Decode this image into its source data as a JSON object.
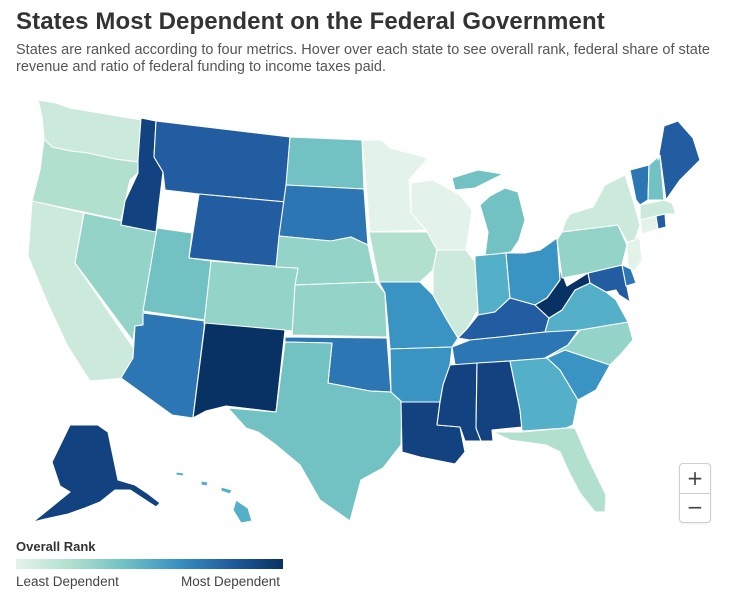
{
  "header": {
    "title": "States Most Dependent on the Federal Government",
    "subtitle": "States are ranked according to four metrics. Hover over each state to see overall rank, federal share of state revenue and ratio of federal funding to income taxes paid."
  },
  "legend": {
    "title": "Overall Rank",
    "low_label": "Least Dependent",
    "high_label": "Most Dependent"
  },
  "zoom": {
    "in_label": "+",
    "out_label": "−"
  },
  "colors": {
    "c1": "#e3f3ea",
    "c2": "#cceadb",
    "c3": "#b1e0cf",
    "c4": "#94d3c7",
    "c5": "#72c2c4",
    "c6": "#54b0c9",
    "c7": "#3993c3",
    "c8": "#2c76b3",
    "c9": "#215da0",
    "c10": "#12427f",
    "c11": "#083263"
  },
  "states": [
    {
      "name": "WA",
      "tier": 2
    },
    {
      "name": "OR",
      "tier": 3
    },
    {
      "name": "CA",
      "tier": 2
    },
    {
      "name": "NV",
      "tier": 4
    },
    {
      "name": "ID",
      "tier": 10
    },
    {
      "name": "MT",
      "tier": 9
    },
    {
      "name": "WY",
      "tier": 9
    },
    {
      "name": "UT",
      "tier": 5
    },
    {
      "name": "AZ",
      "tier": 8
    },
    {
      "name": "CO",
      "tier": 4
    },
    {
      "name": "NM",
      "tier": 11
    },
    {
      "name": "ND",
      "tier": 5
    },
    {
      "name": "SD",
      "tier": 8
    },
    {
      "name": "NE",
      "tier": 4
    },
    {
      "name": "KS",
      "tier": 4
    },
    {
      "name": "OK",
      "tier": 8
    },
    {
      "name": "TX",
      "tier": 5
    },
    {
      "name": "MN",
      "tier": 1
    },
    {
      "name": "IA",
      "tier": 3
    },
    {
      "name": "MO",
      "tier": 7
    },
    {
      "name": "AR",
      "tier": 7
    },
    {
      "name": "LA",
      "tier": 10
    },
    {
      "name": "WI",
      "tier": 1
    },
    {
      "name": "IL",
      "tier": 2
    },
    {
      "name": "MI",
      "tier": 5
    },
    {
      "name": "IN",
      "tier": 6
    },
    {
      "name": "OH",
      "tier": 7
    },
    {
      "name": "KY",
      "tier": 9
    },
    {
      "name": "TN",
      "tier": 8
    },
    {
      "name": "MS",
      "tier": 10
    },
    {
      "name": "AL",
      "tier": 10
    },
    {
      "name": "GA",
      "tier": 6
    },
    {
      "name": "FL",
      "tier": 3
    },
    {
      "name": "SC",
      "tier": 7
    },
    {
      "name": "NC",
      "tier": 4
    },
    {
      "name": "VA",
      "tier": 6
    },
    {
      "name": "WV",
      "tier": 11
    },
    {
      "name": "MD",
      "tier": 9
    },
    {
      "name": "DE",
      "tier": 8
    },
    {
      "name": "PA",
      "tier": 4
    },
    {
      "name": "NJ",
      "tier": 1
    },
    {
      "name": "NY",
      "tier": 2
    },
    {
      "name": "CT",
      "tier": 1
    },
    {
      "name": "RI",
      "tier": 9
    },
    {
      "name": "MA",
      "tier": 2
    },
    {
      "name": "VT",
      "tier": 8
    },
    {
      "name": "NH",
      "tier": 5
    },
    {
      "name": "ME",
      "tier": 9
    },
    {
      "name": "AK",
      "tier": 10
    },
    {
      "name": "HI",
      "tier": 6
    }
  ]
}
